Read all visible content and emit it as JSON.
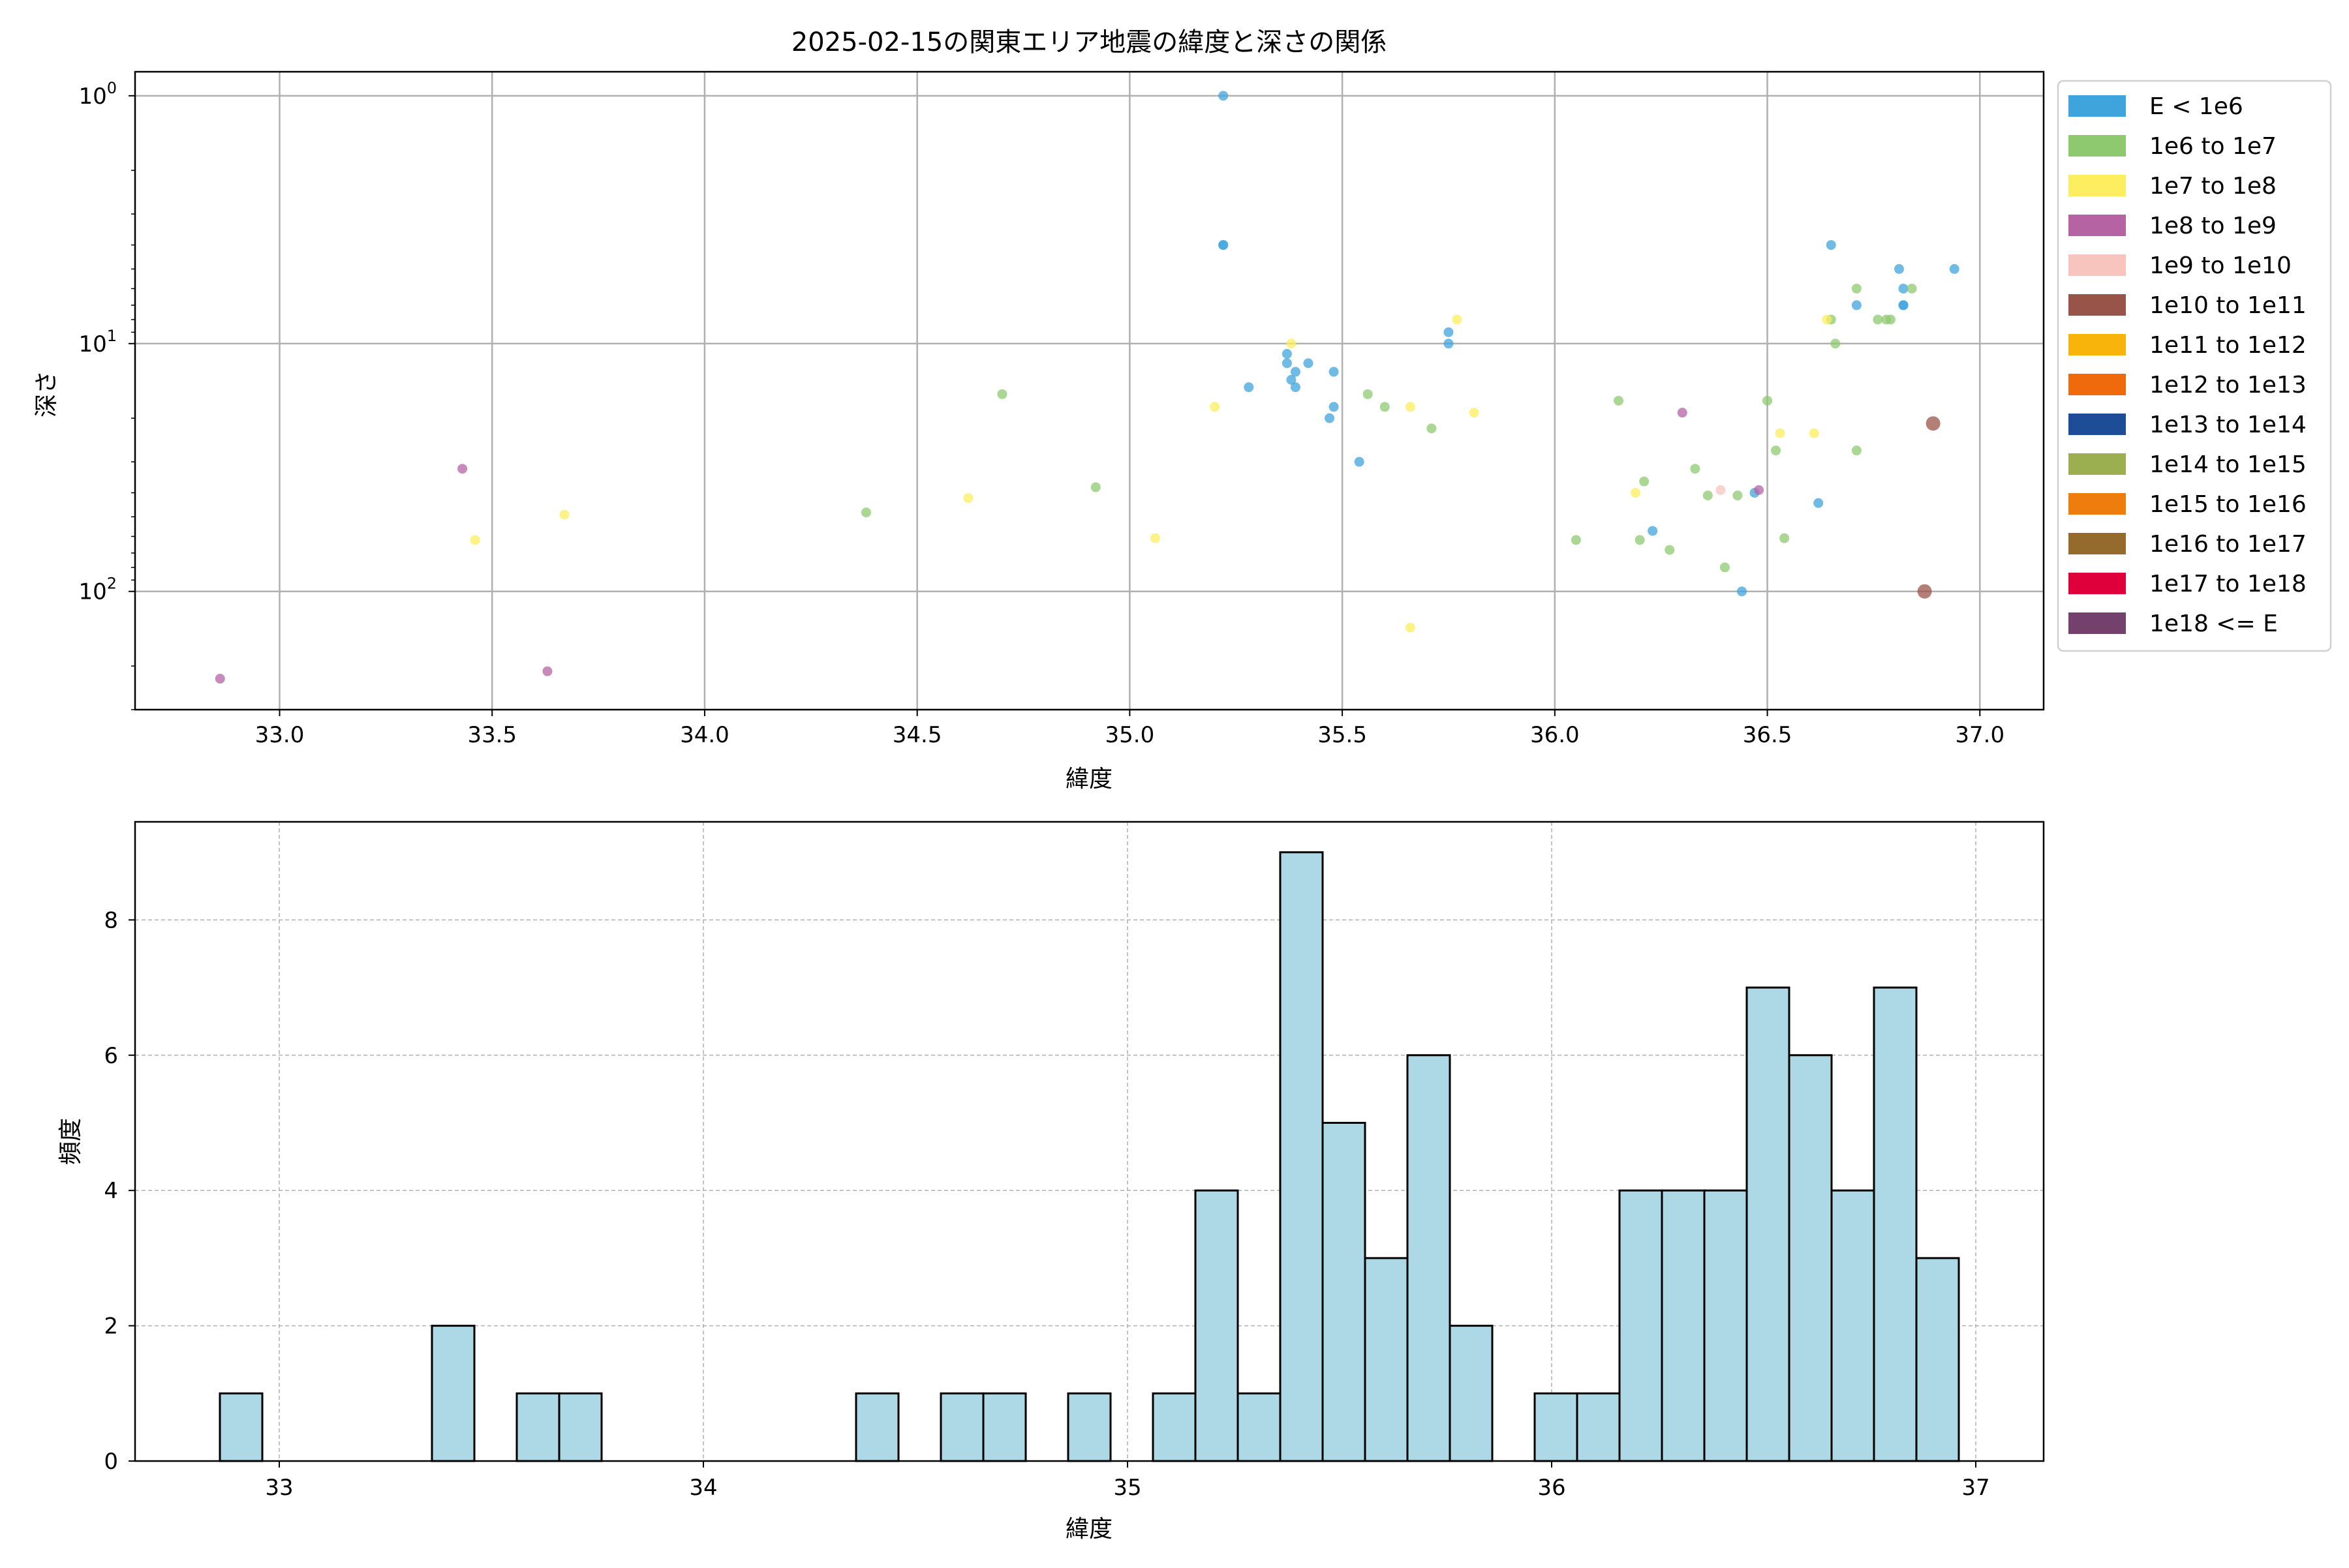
{
  "chart_data": [
    {
      "type": "scatter",
      "title": "2025-02-15の関東エリア地震の緯度と深さの関係",
      "xlabel": "緯度",
      "ylabel": "深さ",
      "xlim": [
        32.66,
        37.15
      ],
      "ylim": [
        300,
        0.8
      ],
      "yscale": "log",
      "y_inverted": true,
      "grid": true,
      "legend_placement": "outside-right-top",
      "x_ticks": [
        "33.0",
        "33.5",
        "34.0",
        "34.5",
        "35.0",
        "35.5",
        "36.0",
        "36.5",
        "37.0"
      ],
      "x_tick_values": [
        33.0,
        33.5,
        34.0,
        34.5,
        35.0,
        35.5,
        36.0,
        36.5,
        37.0
      ],
      "y_ticks": [
        {
          "value": 1,
          "base": "10",
          "exp": "0"
        },
        {
          "value": 10,
          "base": "10",
          "exp": "1"
        },
        {
          "value": 100,
          "base": "10",
          "exp": "2"
        }
      ],
      "legend": [
        {
          "label": "E < 1e6",
          "color": "#3fa4dc"
        },
        {
          "label": "1e6 to 1e7",
          "color": "#8ec96f"
        },
        {
          "label": "1e7 to 1e8",
          "color": "#fcee5e"
        },
        {
          "label": "1e8 to 1e9",
          "color": "#b563a3"
        },
        {
          "label": "1e9 to 1e10",
          "color": "#f7c4be"
        },
        {
          "label": "1e10 to 1e11",
          "color": "#995449"
        },
        {
          "label": "1e11 to 1e12",
          "color": "#f8b40a"
        },
        {
          "label": "1e12 to 1e13",
          "color": "#ef6a0c"
        },
        {
          "label": "1e13 to 1e14",
          "color": "#1d4d96"
        },
        {
          "label": "1e14 to 1e15",
          "color": "#9bae50"
        },
        {
          "label": "1e15 to 1e16",
          "color": "#ef7d0d"
        },
        {
          "label": "1e16 to 1e17",
          "color": "#946b2c"
        },
        {
          "label": "1e17 to 1e18",
          "color": "#df003b"
        },
        {
          "label": "1e18 <= E",
          "color": "#74416c"
        }
      ],
      "series": [
        {
          "color": "#3fa4dc",
          "points": [
            [
              35.22,
              1
            ],
            [
              35.22,
              4
            ],
            [
              35.22,
              4
            ],
            [
              35.28,
              15
            ],
            [
              35.37,
              11
            ],
            [
              35.37,
              12
            ],
            [
              35.38,
              14
            ],
            [
              35.39,
              13
            ],
            [
              35.39,
              15
            ],
            [
              35.42,
              12
            ],
            [
              35.47,
              20
            ],
            [
              35.48,
              13
            ],
            [
              35.48,
              18
            ],
            [
              35.54,
              30
            ],
            [
              35.75,
              9
            ],
            [
              35.75,
              10
            ],
            [
              36.23,
              57
            ],
            [
              36.44,
              100
            ],
            [
              36.47,
              40
            ],
            [
              36.62,
              44
            ],
            [
              36.65,
              4
            ],
            [
              36.71,
              7
            ],
            [
              36.81,
              5
            ],
            [
              36.82,
              6
            ],
            [
              36.82,
              7
            ],
            [
              36.82,
              7
            ],
            [
              36.94,
              5
            ]
          ]
        },
        {
          "color": "#8ec96f",
          "points": [
            [
              34.38,
              48
            ],
            [
              34.7,
              16
            ],
            [
              34.92,
              38
            ],
            [
              35.56,
              16
            ],
            [
              35.6,
              18
            ],
            [
              35.71,
              22
            ],
            [
              36.05,
              62
            ],
            [
              36.15,
              17
            ],
            [
              36.2,
              62
            ],
            [
              36.21,
              36
            ],
            [
              36.27,
              68
            ],
            [
              36.33,
              32
            ],
            [
              36.36,
              41
            ],
            [
              36.4,
              80
            ],
            [
              36.43,
              41
            ],
            [
              36.5,
              17
            ],
            [
              36.52,
              27
            ],
            [
              36.54,
              61
            ],
            [
              36.65,
              8
            ],
            [
              36.66,
              10
            ],
            [
              36.71,
              6
            ],
            [
              36.71,
              27
            ],
            [
              36.76,
              8
            ],
            [
              36.78,
              8
            ],
            [
              36.79,
              8
            ],
            [
              36.84,
              6
            ]
          ]
        },
        {
          "color": "#fcee5e",
          "points": [
            [
              33.46,
              62
            ],
            [
              33.67,
              49
            ],
            [
              34.62,
              42
            ],
            [
              35.06,
              61
            ],
            [
              35.2,
              18
            ],
            [
              35.38,
              10
            ],
            [
              35.66,
              18
            ],
            [
              35.66,
              140
            ],
            [
              35.77,
              8
            ],
            [
              35.81,
              19
            ],
            [
              36.19,
              40
            ],
            [
              36.53,
              23
            ],
            [
              36.61,
              23
            ],
            [
              36.64,
              8
            ]
          ]
        },
        {
          "color": "#b563a3",
          "points": [
            [
              32.86,
              225
            ],
            [
              33.43,
              32
            ],
            [
              33.63,
              210
            ],
            [
              36.3,
              19
            ],
            [
              36.48,
              39
            ]
          ]
        },
        {
          "color": "#f7c4be",
          "points": [
            [
              36.39,
              39
            ]
          ]
        },
        {
          "color": "#995449",
          "points": [
            [
              36.87,
              100
            ],
            [
              36.89,
              21
            ]
          ]
        }
      ]
    },
    {
      "type": "bar",
      "subtype": "histogram",
      "xlabel": "緯度",
      "ylabel": "頻度",
      "xlim": [
        32.66,
        37.16
      ],
      "ylim": [
        0,
        9.45
      ],
      "grid": true,
      "bar_color": "#add8e6",
      "x_ticks": [
        "33",
        "34",
        "35",
        "36",
        "37"
      ],
      "x_tick_values": [
        33,
        34,
        35,
        36,
        37
      ],
      "y_ticks": [
        "0",
        "2",
        "4",
        "6",
        "8"
      ],
      "y_tick_values": [
        0,
        2,
        4,
        6,
        8
      ],
      "bins_start": 32.86,
      "bin_width": 0.1,
      "counts": [
        1,
        0,
        0,
        0,
        0,
        2,
        0,
        1,
        1,
        0,
        0,
        0,
        0,
        0,
        0,
        1,
        0,
        1,
        1,
        0,
        1,
        0,
        1,
        4,
        1,
        9,
        5,
        3,
        6,
        2,
        0,
        1,
        1,
        4,
        4,
        4,
        7,
        6,
        4,
        7,
        3
      ]
    }
  ]
}
